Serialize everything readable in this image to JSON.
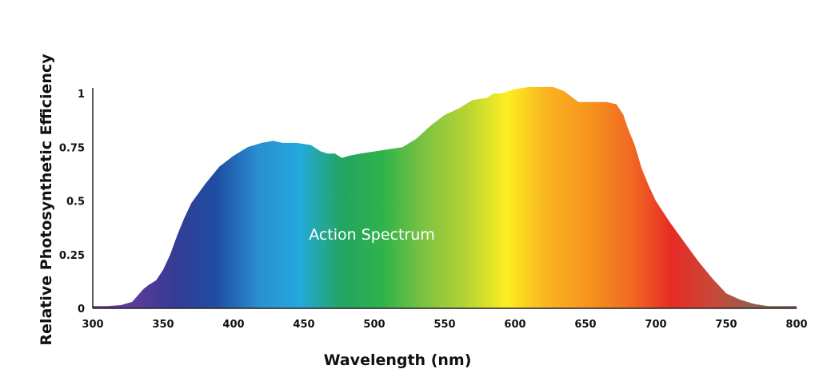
{
  "chart_data": {
    "type": "area",
    "title": "",
    "xlabel": "Wavelength (nm)",
    "ylabel": "Relative Photosynthetic Efficiency",
    "xlim": [
      300,
      800
    ],
    "ylim": [
      0,
      1
    ],
    "xticks": [
      300,
      350,
      400,
      450,
      500,
      550,
      600,
      650,
      700,
      750,
      800
    ],
    "yticks": [
      0,
      0.25,
      0.5,
      0.75,
      1
    ],
    "ytick_labels": [
      "0",
      "0.25",
      "0.5",
      "0.75",
      "1"
    ],
    "grid": false,
    "annotation": "Action Spectrum",
    "series": [
      {
        "x": [
          300,
          310,
          320,
          328,
          332,
          336,
          340,
          345,
          350,
          355,
          360,
          365,
          370,
          380,
          390,
          400,
          410,
          420,
          428,
          435,
          445,
          455,
          462,
          467,
          472,
          477,
          482,
          490,
          500,
          510,
          520,
          525,
          530,
          540,
          550,
          560,
          570,
          580,
          585,
          590,
          600,
          610,
          620,
          627,
          635,
          645,
          655,
          665,
          672,
          677,
          680,
          685,
          690,
          695,
          700,
          710,
          720,
          730,
          740,
          750,
          760,
          770,
          780,
          790,
          800
        ],
        "y": [
          0.01,
          0.01,
          0.015,
          0.03,
          0.06,
          0.09,
          0.11,
          0.13,
          0.18,
          0.25,
          0.34,
          0.42,
          0.49,
          0.58,
          0.66,
          0.71,
          0.75,
          0.77,
          0.78,
          0.77,
          0.77,
          0.76,
          0.73,
          0.72,
          0.72,
          0.7,
          0.71,
          0.72,
          0.73,
          0.74,
          0.75,
          0.77,
          0.79,
          0.85,
          0.9,
          0.93,
          0.97,
          0.98,
          1.0,
          1.0,
          1.02,
          1.03,
          1.03,
          1.03,
          1.01,
          0.96,
          0.96,
          0.96,
          0.95,
          0.9,
          0.84,
          0.76,
          0.65,
          0.57,
          0.5,
          0.4,
          0.31,
          0.22,
          0.14,
          0.07,
          0.04,
          0.02,
          0.01,
          0.01,
          0.01
        ]
      }
    ],
    "gradient_colors": [
      "#6a3193",
      "#5b3a9a",
      "#333c94",
      "#1f4ea3",
      "#2a8fd0",
      "#24a9dd",
      "#23a463",
      "#2fb34a",
      "#7cc241",
      "#b5d334",
      "#fdee21",
      "#f9b221",
      "#f6931e",
      "#f16923",
      "#e62b26",
      "#c8493a",
      "#8e6050",
      "#6f5a4e"
    ]
  }
}
